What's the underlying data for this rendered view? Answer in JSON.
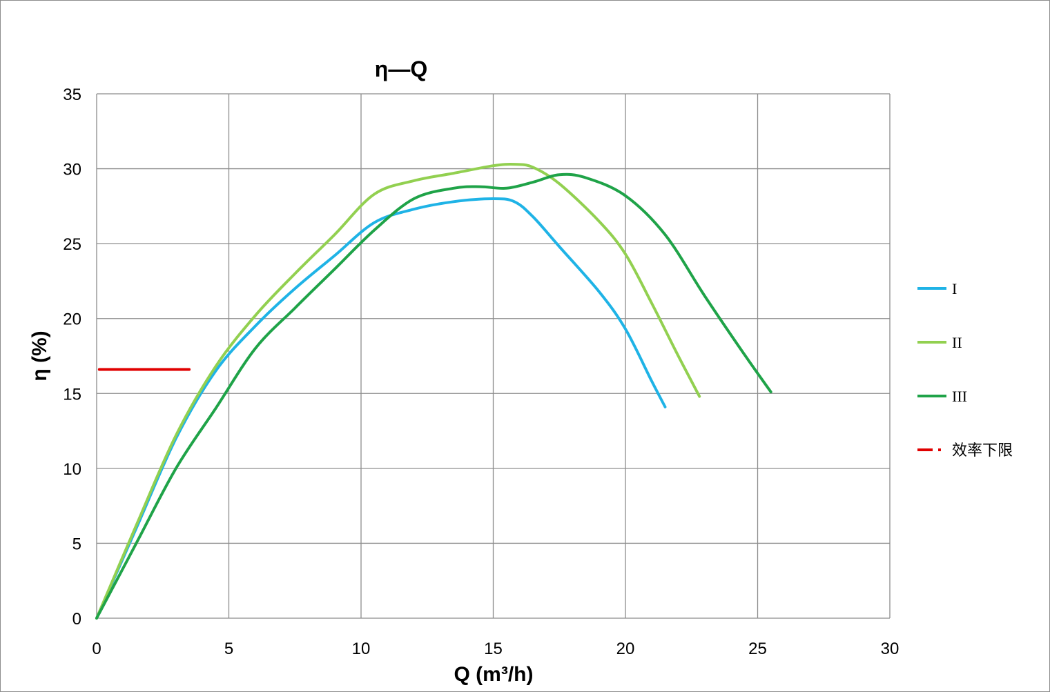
{
  "chart_data": {
    "type": "line",
    "title": "η—Q",
    "xlabel": "Q (m³/h)",
    "ylabel": "η (%)",
    "xlim": [
      0,
      30
    ],
    "ylim": [
      0,
      35
    ],
    "xticks": [
      0,
      5,
      10,
      15,
      20,
      25,
      30
    ],
    "yticks": [
      0,
      5,
      10,
      15,
      20,
      25,
      30,
      35
    ],
    "grid": true,
    "legend_position": "right",
    "series": [
      {
        "name": "I",
        "color": "#1fb3e6",
        "x": [
          0,
          1.5,
          3,
          4.5,
          6,
          7.5,
          9,
          10.5,
          12,
          13.5,
          15,
          15.8,
          16.5,
          17.5,
          19,
          20,
          21,
          21.5
        ],
        "y": [
          0,
          6,
          12,
          16.5,
          19.5,
          22,
          24.2,
          26.4,
          27.3,
          27.8,
          28,
          27.8,
          26.8,
          24.8,
          21.8,
          19.3,
          15.8,
          14.1
        ]
      },
      {
        "name": "II",
        "color": "#92d050",
        "x": [
          0,
          1.5,
          3,
          4.5,
          6,
          7.5,
          9,
          10.5,
          12,
          13.5,
          15,
          15.8,
          16.5,
          17.5,
          19,
          20,
          21,
          22,
          22.8
        ],
        "y": [
          0,
          6.2,
          12.2,
          16.8,
          20.2,
          23,
          25.6,
          28.3,
          29.2,
          29.7,
          30.2,
          30.3,
          30.1,
          29,
          26.5,
          24.3,
          21,
          17.5,
          14.8
        ]
      },
      {
        "name": "III",
        "color": "#1fa348",
        "x": [
          0,
          1.5,
          3,
          4.5,
          6,
          7.5,
          9,
          10.5,
          12,
          13.5,
          14.5,
          15.5,
          16.5,
          17.5,
          18.5,
          20,
          21.5,
          23,
          24.5,
          25.5
        ],
        "y": [
          0,
          5,
          10,
          14,
          18,
          20.7,
          23.3,
          25.9,
          28,
          28.7,
          28.8,
          28.7,
          29.1,
          29.6,
          29.4,
          28.2,
          25.6,
          21.5,
          17.6,
          15.1
        ]
      },
      {
        "name": "效率下限",
        "color": "#e00000",
        "dashed_legend": true,
        "x": [
          0.1,
          3.5
        ],
        "y": [
          16.6,
          16.6
        ]
      }
    ]
  }
}
